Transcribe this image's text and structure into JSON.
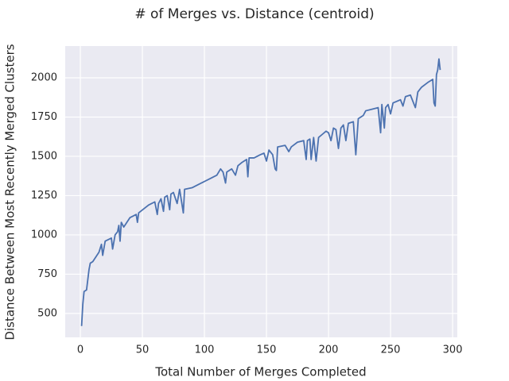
{
  "chart_data": {
    "type": "line",
    "title": "# of Merges vs. Distance (centroid)",
    "x_label": "Total Number of Merges Completed",
    "y_label": "Distance Between Most Recently Merged Clusters",
    "grid": true,
    "color": "#4c72b0",
    "xlim": [
      -12.2,
      303.8
    ],
    "ylim": [
      348,
      2202
    ],
    "xticks": [
      0,
      50,
      100,
      150,
      200,
      250,
      300
    ],
    "yticks": [
      500,
      750,
      1000,
      1250,
      1500,
      1750,
      2000
    ],
    "x": [
      1,
      2,
      3,
      5,
      7,
      8,
      10,
      15,
      17,
      18,
      20,
      25,
      26,
      28,
      30,
      31,
      32,
      33,
      35,
      40,
      45,
      46,
      47,
      55,
      60,
      62,
      63,
      65,
      67,
      68,
      70,
      72,
      73,
      75,
      78,
      80,
      83,
      84,
      90,
      95,
      100,
      105,
      110,
      113,
      115,
      117,
      118,
      122,
      125,
      127,
      130,
      134,
      135,
      136,
      140,
      145,
      148,
      150,
      152,
      155,
      157,
      158,
      159,
      165,
      168,
      170,
      175,
      180,
      182,
      183,
      185,
      186,
      188,
      190,
      192,
      195,
      198,
      200,
      202,
      204,
      206,
      208,
      210,
      212,
      214,
      216,
      220,
      222,
      224,
      226,
      228,
      230,
      235,
      240,
      242,
      243,
      245,
      246,
      248,
      250,
      252,
      255,
      258,
      260,
      262,
      266,
      270,
      272,
      275,
      280,
      284,
      285,
      286,
      287,
      288,
      289,
      290
    ],
    "values": [
      420,
      560,
      640,
      650,
      780,
      820,
      830,
      890,
      940,
      870,
      960,
      980,
      910,
      1000,
      1020,
      1060,
      960,
      1080,
      1050,
      1110,
      1130,
      1080,
      1140,
      1190,
      1210,
      1130,
      1200,
      1230,
      1150,
      1240,
      1250,
      1160,
      1260,
      1270,
      1200,
      1290,
      1140,
      1290,
      1300,
      1320,
      1340,
      1360,
      1380,
      1420,
      1400,
      1330,
      1400,
      1420,
      1380,
      1440,
      1460,
      1480,
      1370,
      1490,
      1490,
      1510,
      1520,
      1470,
      1540,
      1510,
      1420,
      1410,
      1560,
      1570,
      1530,
      1560,
      1590,
      1600,
      1480,
      1600,
      1610,
      1480,
      1620,
      1470,
      1620,
      1640,
      1660,
      1650,
      1600,
      1680,
      1670,
      1550,
      1680,
      1700,
      1600,
      1710,
      1720,
      1510,
      1740,
      1750,
      1760,
      1790,
      1800,
      1810,
      1650,
      1830,
      1680,
      1810,
      1830,
      1770,
      1840,
      1850,
      1860,
      1820,
      1880,
      1890,
      1810,
      1910,
      1940,
      1970,
      1990,
      1840,
      1820,
      2020,
      2050,
      2120,
      2050
    ]
  }
}
